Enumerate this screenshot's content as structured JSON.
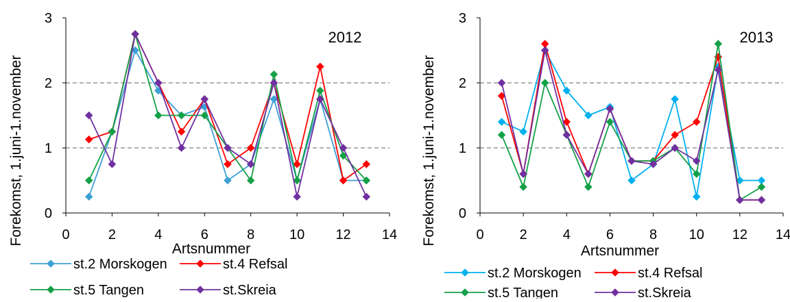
{
  "chart_data": [
    {
      "type": "line",
      "title": "2012",
      "xlabel": "Artsnummer",
      "ylabel": "Forekomst, 1.juni-1.november",
      "xlim": [
        0,
        14
      ],
      "ylim": [
        0,
        3
      ],
      "x_ticks": [
        "0",
        "2",
        "4",
        "6",
        "8",
        "10",
        "12",
        "14"
      ],
      "y_ticks": [
        "0",
        "1",
        "2",
        "3"
      ],
      "grid": "horizontal dashed at 1 and 2",
      "legend_position": "bottom",
      "x": [
        1,
        2,
        3,
        4,
        5,
        6,
        7,
        8,
        9,
        10,
        11,
        12,
        13
      ],
      "series": [
        {
          "name": "st.2 Morskogen",
          "color": "#3d9fd6",
          "values": [
            0.25,
            1.25,
            2.5,
            1.88,
            1.5,
            1.63,
            0.5,
            0.75,
            1.75,
            0.5,
            1.75,
            0.5,
            0.5
          ]
        },
        {
          "name": "st.4 Refsal",
          "color": "#ff0000",
          "values": [
            1.13,
            1.25,
            2.75,
            2.0,
            1.25,
            1.75,
            0.75,
            1.0,
            2.0,
            0.75,
            2.25,
            0.5,
            0.75
          ]
        },
        {
          "name": "st.5 Tangen",
          "color": "#14a046",
          "values": [
            0.5,
            1.25,
            2.75,
            1.5,
            1.5,
            1.5,
            1.0,
            0.5,
            2.13,
            0.5,
            1.88,
            0.88,
            0.5
          ]
        },
        {
          "name": "st.Skreia",
          "color": "#7030a0",
          "values": [
            1.5,
            0.75,
            2.75,
            2.0,
            1.0,
            1.75,
            1.0,
            0.75,
            2.0,
            0.25,
            1.75,
            1.0,
            0.25
          ]
        }
      ]
    },
    {
      "type": "line",
      "title": "2013",
      "xlabel": "Artsnummer",
      "ylabel": "Forekomst, 1.juni-1.november",
      "xlim": [
        0,
        14
      ],
      "ylim": [
        0,
        3
      ],
      "x_ticks": [
        "0",
        "2",
        "4",
        "6",
        "8",
        "10",
        "12",
        "14"
      ],
      "y_ticks": [
        "0",
        "1",
        "2",
        "3"
      ],
      "grid": "horizontal dashed at 1 and 2",
      "legend_position": "bottom",
      "x": [
        1,
        2,
        3,
        4,
        5,
        6,
        7,
        8,
        9,
        10,
        11,
        12,
        13
      ],
      "series": [
        {
          "name": "st.2 Morskogen",
          "color": "#00b0f0",
          "values": [
            1.4,
            1.25,
            2.5,
            1.88,
            1.5,
            1.63,
            0.5,
            0.75,
            1.75,
            0.25,
            2.25,
            0.5,
            0.5
          ]
        },
        {
          "name": "st.4 Refsal",
          "color": "#ff0000",
          "values": [
            1.8,
            0.6,
            2.6,
            1.4,
            0.6,
            1.6,
            0.8,
            0.8,
            1.2,
            1.4,
            2.4,
            0.2,
            0.2
          ]
        },
        {
          "name": "st.5 Tangen",
          "color": "#14a046",
          "values": [
            1.2,
            0.4,
            2.0,
            1.2,
            0.4,
            1.4,
            0.8,
            0.8,
            1.0,
            0.6,
            2.6,
            0.2,
            0.4
          ]
        },
        {
          "name": "st.Skreia",
          "color": "#7030a0",
          "values": [
            2.0,
            0.6,
            2.5,
            1.2,
            0.6,
            1.6,
            0.8,
            0.75,
            1.0,
            0.8,
            2.2,
            0.2,
            0.2
          ]
        }
      ]
    }
  ]
}
